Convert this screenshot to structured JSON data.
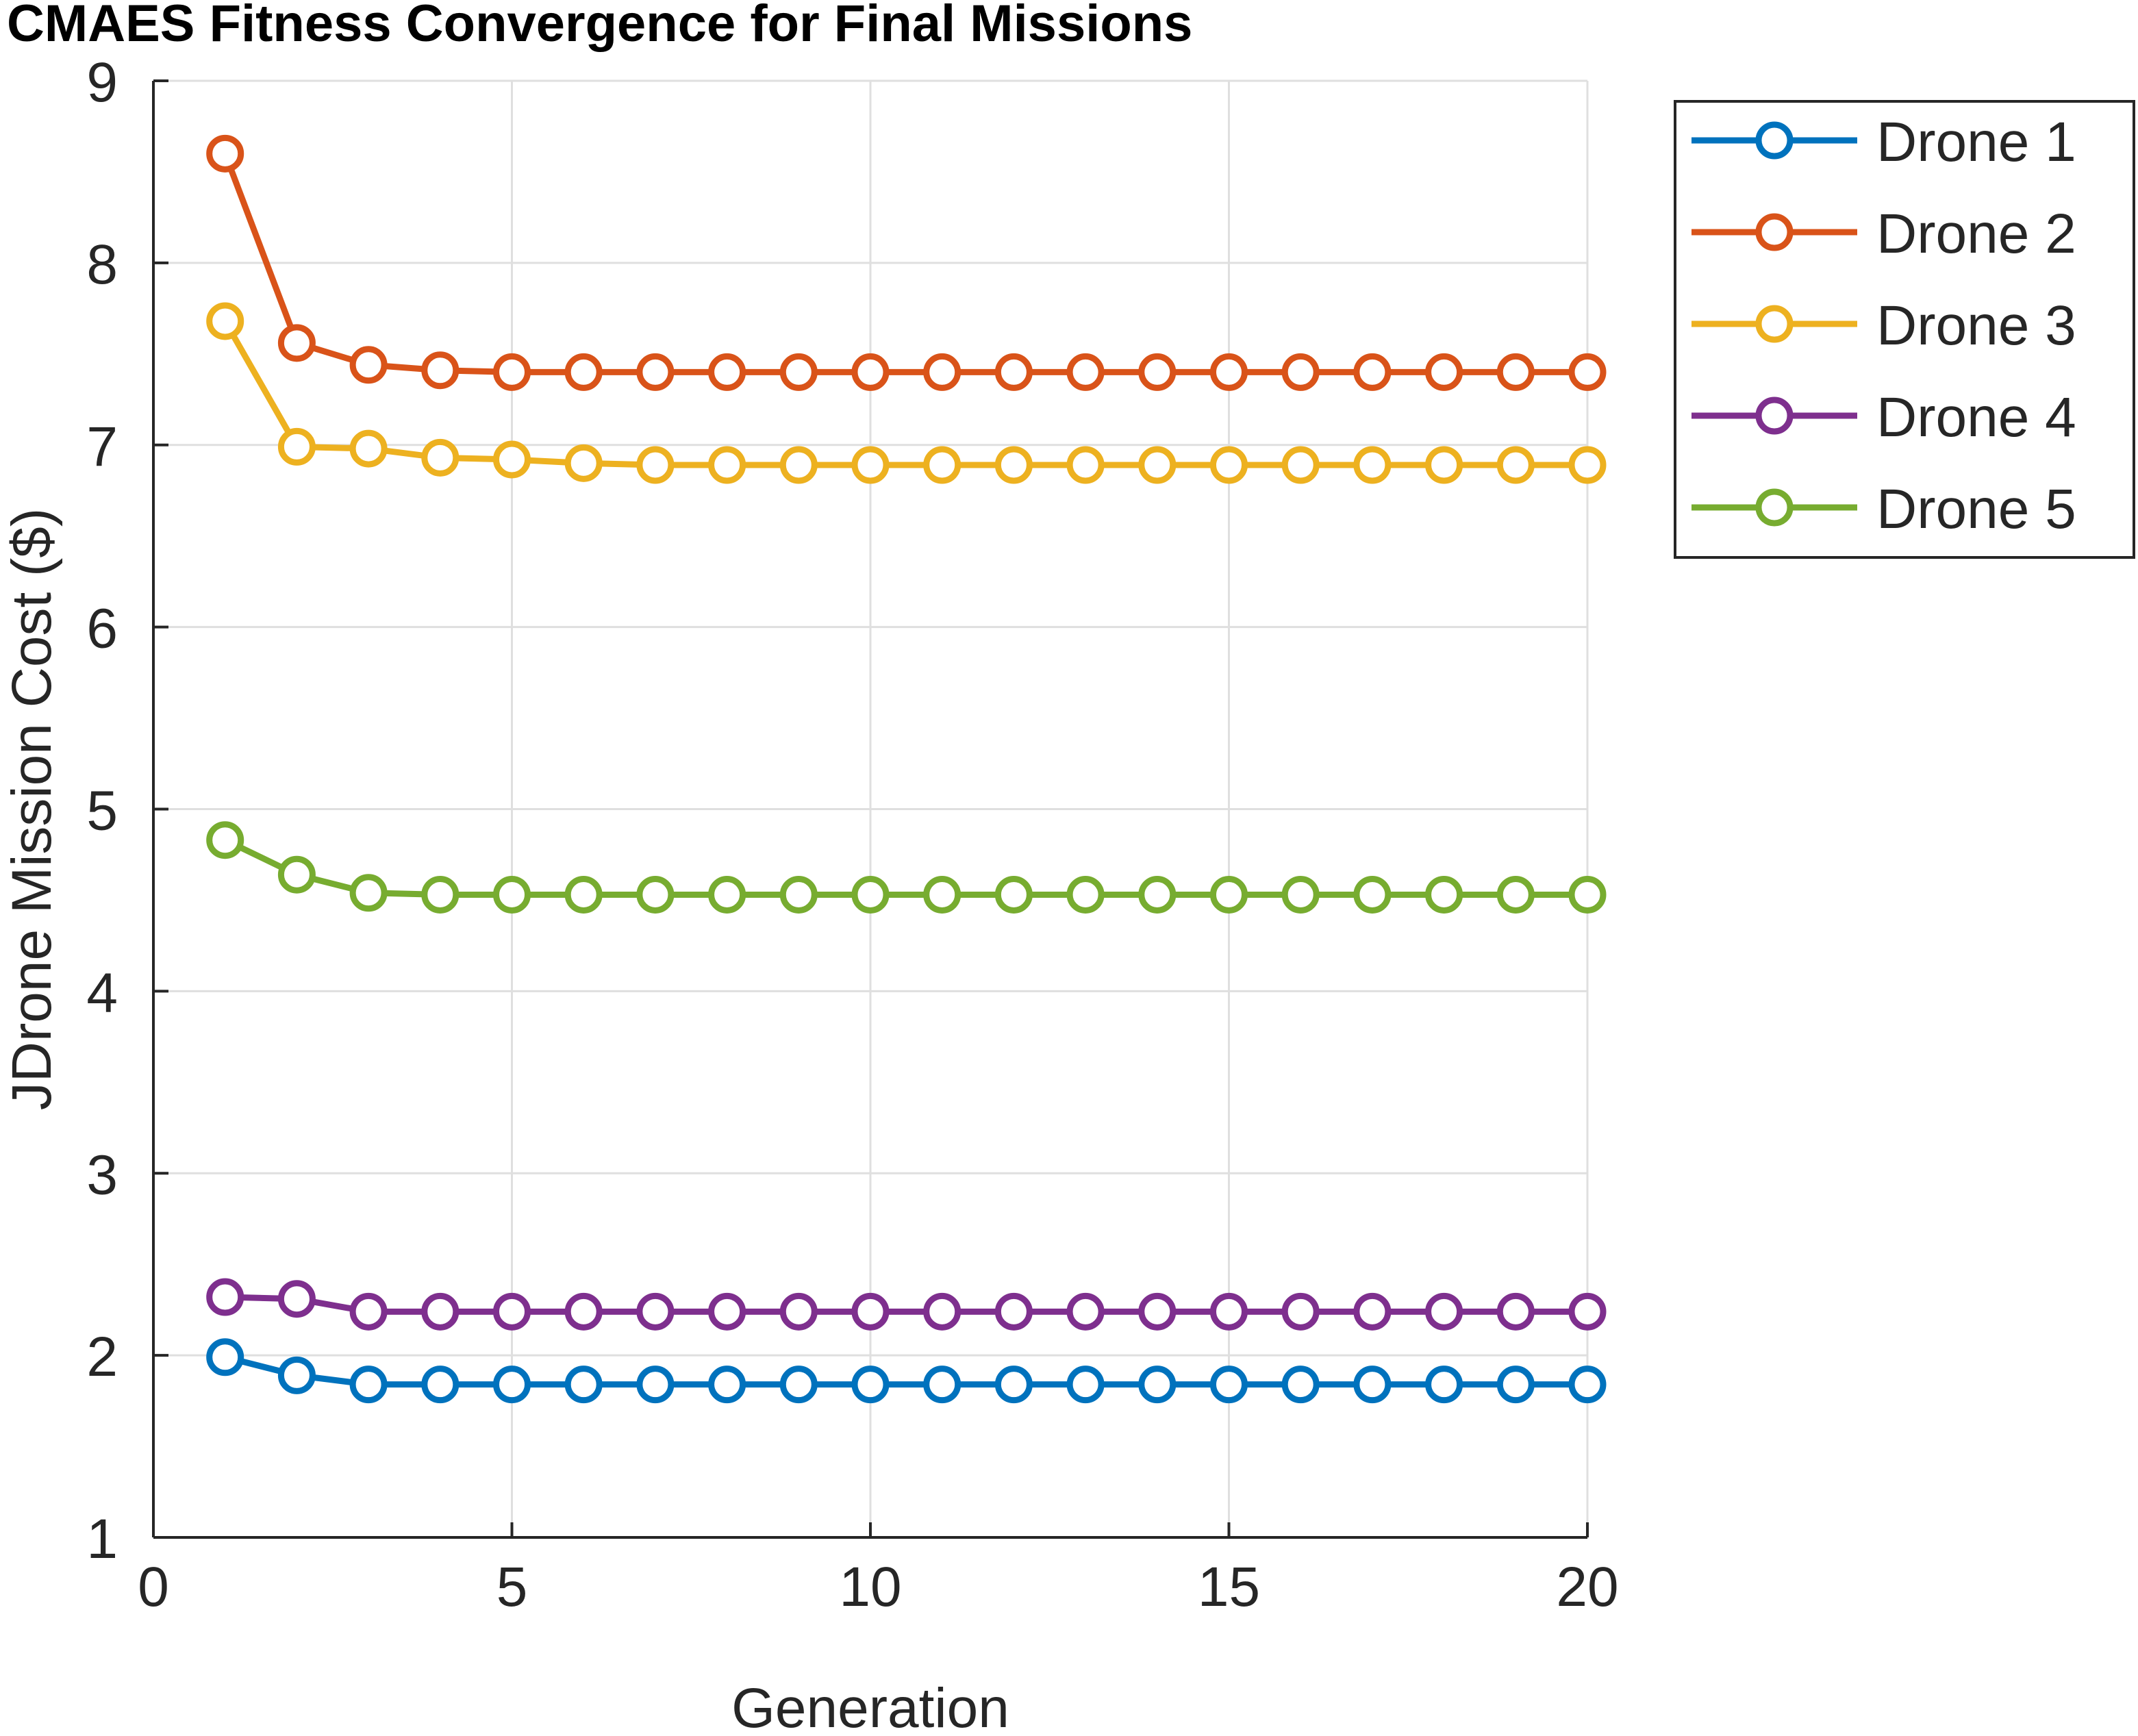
{
  "chart_data": {
    "type": "line",
    "title": "CMAES Fitness Convergence for Final Missions",
    "xlabel": "Generation",
    "ylabel": "JDrone Mission Cost ($)",
    "xlim": [
      0,
      20
    ],
    "ylim": [
      1,
      9
    ],
    "xticks": [
      0,
      5,
      10,
      15,
      20
    ],
    "yticks": [
      1,
      2,
      3,
      4,
      5,
      6,
      7,
      8,
      9
    ],
    "grid": true,
    "legend_position": "outside-top-right",
    "marker": "circle",
    "x": [
      1,
      2,
      3,
      4,
      5,
      6,
      7,
      8,
      9,
      10,
      11,
      12,
      13,
      14,
      15,
      16,
      17,
      18,
      19,
      20
    ],
    "series": [
      {
        "name": "Drone 1",
        "color": "#0072BD",
        "values": [
          1.99,
          1.89,
          1.84,
          1.84,
          1.84,
          1.84,
          1.84,
          1.84,
          1.84,
          1.84,
          1.84,
          1.84,
          1.84,
          1.84,
          1.84,
          1.84,
          1.84,
          1.84,
          1.84,
          1.84
        ]
      },
      {
        "name": "Drone 2",
        "color": "#D95319",
        "values": [
          8.6,
          7.56,
          7.44,
          7.41,
          7.4,
          7.4,
          7.4,
          7.4,
          7.4,
          7.4,
          7.4,
          7.4,
          7.4,
          7.4,
          7.4,
          7.4,
          7.4,
          7.4,
          7.4,
          7.4
        ]
      },
      {
        "name": "Drone 3",
        "color": "#EDB120",
        "values": [
          7.68,
          6.99,
          6.98,
          6.93,
          6.92,
          6.9,
          6.89,
          6.89,
          6.89,
          6.89,
          6.89,
          6.89,
          6.89,
          6.89,
          6.89,
          6.89,
          6.89,
          6.89,
          6.89,
          6.89
        ]
      },
      {
        "name": "Drone 4",
        "color": "#7E2F8E",
        "values": [
          2.32,
          2.31,
          2.24,
          2.24,
          2.24,
          2.24,
          2.24,
          2.24,
          2.24,
          2.24,
          2.24,
          2.24,
          2.24,
          2.24,
          2.24,
          2.24,
          2.24,
          2.24,
          2.24,
          2.24
        ]
      },
      {
        "name": "Drone 5",
        "color": "#77AC30",
        "values": [
          4.83,
          4.64,
          4.54,
          4.53,
          4.53,
          4.53,
          4.53,
          4.53,
          4.53,
          4.53,
          4.53,
          4.53,
          4.53,
          4.53,
          4.53,
          4.53,
          4.53,
          4.53,
          4.53,
          4.53
        ]
      }
    ]
  }
}
